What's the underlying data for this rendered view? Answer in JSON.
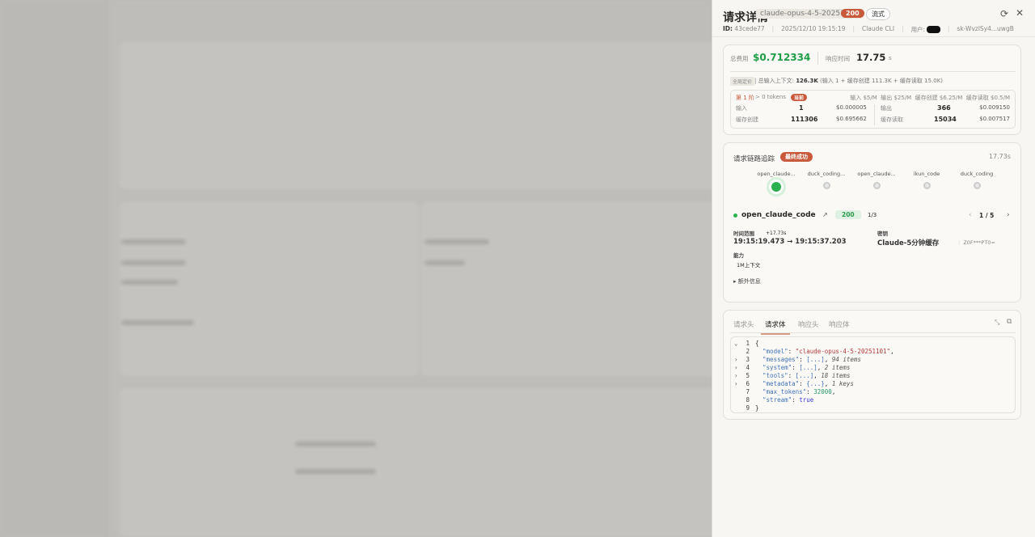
{
  "drawer": {
    "title": "请求详情",
    "model": "claude-opus-4-5-20251101",
    "status": "200",
    "mode": "流式",
    "meta": {
      "id_label": "ID:",
      "id": "43cede77",
      "time": "2025/12/10 19:15:19",
      "client": "Claude CLI",
      "user_label": "用户:",
      "user": "c…n",
      "key": "sk-WvzlSy4...uwgB"
    },
    "icons": {
      "refresh": "refresh-icon",
      "close": "close-icon"
    }
  },
  "cost": {
    "total_label": "总费用",
    "total": "$0.712334",
    "resp_label": "响应时间",
    "resp": "17.75",
    "resp_unit": "s",
    "pricing_tag": "全局定价",
    "context_label": "总输入上下文:",
    "context": "126.3K",
    "context_detail": "(输入 1 + 缓存创建 111.3K + 缓存读取 15.0K)",
    "tier": {
      "name": "第 1 阶",
      "cond": "> 0 tokens",
      "badge": "当前",
      "prices": "输入 $5/M  输出 $25/M  缓存创建 $6.25/M  缓存读取 $0.5/M"
    },
    "rows": [
      {
        "label": "输入",
        "count": "1",
        "cost": "$0.000005"
      },
      {
        "label": "输出",
        "count": "366",
        "cost": "$0.009150"
      },
      {
        "label": "缓存创建",
        "count": "111306",
        "cost": "$0.695662"
      },
      {
        "label": "缓存读取",
        "count": "15034",
        "cost": "$0.007517"
      }
    ]
  },
  "trace": {
    "title": "请求链路追踪",
    "badge": "最终成功",
    "duration": "17.73s",
    "nodes": [
      "open_claude...",
      "duck_coding...",
      "open_claude...",
      "ikun_code",
      "duck_coding"
    ],
    "provider": "open_claude_code",
    "status": "200",
    "attempt": "1/3",
    "page": "1 / 5",
    "time_label": "时间范围",
    "time_delta": "+17.73s",
    "time_range": "19:15:19.473 → 19:15:37.203",
    "key_label": "密钥",
    "key_name": "Claude-5分钟缓存",
    "key_mask": "Z0F***PT0=",
    "cap_label": "能力",
    "cap": "1M上下文",
    "extra": "额外信息"
  },
  "body": {
    "tabs": [
      "请求头",
      "请求体",
      "响应头",
      "响应体"
    ],
    "active_tab": 1,
    "lines": [
      {
        "n": "1",
        "t": "{"
      },
      {
        "n": "2",
        "k": "\"model\"",
        "v": "\"claude-opus-4-5-20251101\"",
        "vt": "s",
        "tail": ","
      },
      {
        "n": "3",
        "k": "\"messages\"",
        "v": "[...]",
        "vt": "k",
        "tail": ",",
        "note": "94 items"
      },
      {
        "n": "4",
        "k": "\"system\"",
        "v": "[...]",
        "vt": "k",
        "tail": ",",
        "note": "2 items"
      },
      {
        "n": "5",
        "k": "\"tools\"",
        "v": "[...]",
        "vt": "k",
        "tail": ",",
        "note": "18 items"
      },
      {
        "n": "6",
        "k": "\"metadata\"",
        "v": "{...}",
        "vt": "k",
        "tail": ",",
        "note": "1 keys"
      },
      {
        "n": "7",
        "k": "\"max_tokens\"",
        "v": "32000",
        "vt": "n",
        "tail": ","
      },
      {
        "n": "8",
        "k": "\"stream\"",
        "v": "true",
        "vt": "b",
        "tail": ""
      },
      {
        "n": "9",
        "t": "}"
      }
    ]
  }
}
